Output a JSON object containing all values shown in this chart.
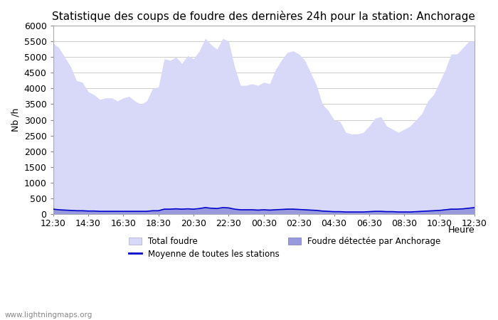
{
  "title": "Statistique des coups de foudre des dernières 24h pour la station: Anchorage",
  "xlabel": "Heure",
  "ylabel": "Nb /h",
  "watermark": "www.lightningmaps.org",
  "ylim": [
    0,
    6000
  ],
  "yticks": [
    0,
    500,
    1000,
    1500,
    2000,
    2500,
    3000,
    3500,
    4000,
    4500,
    5000,
    5500,
    6000
  ],
  "x_labels": [
    "12:30",
    "14:30",
    "16:30",
    "18:30",
    "20:30",
    "22:30",
    "00:30",
    "02:30",
    "04:30",
    "06:30",
    "08:30",
    "10:30",
    "12:30"
  ],
  "total_foudre_color": "#d8d8f8",
  "anchorage_color": "#9999dd",
  "moyenne_color": "#0000cc",
  "background_color": "#ffffff",
  "plot_bg_color": "#ffffff",
  "grid_color": "#cccccc",
  "title_fontsize": 11,
  "axis_fontsize": 9,
  "tick_fontsize": 9,
  "total_foudre": [
    5450,
    5300,
    5000,
    4700,
    4250,
    4200,
    3900,
    3800,
    3650,
    3700,
    3700,
    3600,
    3700,
    3750,
    3600,
    3500,
    3600,
    4000,
    4050,
    4950,
    4900,
    5000,
    4800,
    5050,
    4950,
    5200,
    5600,
    5400,
    5250,
    5600,
    5500,
    4700,
    4100,
    4100,
    4150,
    4100,
    4200,
    4150,
    4600,
    4900,
    5150,
    5200,
    5100,
    4900,
    4500,
    4100,
    3500,
    3300,
    3000,
    2950,
    2600,
    2550,
    2550,
    2600,
    2800,
    3050,
    3100,
    2800,
    2700,
    2600,
    2700,
    2800,
    3000,
    3200,
    3600,
    3800,
    4200,
    4600,
    5100,
    5100,
    5300,
    5500,
    5520
  ],
  "anchorage": [
    150,
    130,
    120,
    110,
    100,
    100,
    90,
    90,
    80,
    80,
    80,
    80,
    80,
    80,
    80,
    80,
    80,
    100,
    100,
    150,
    150,
    160,
    150,
    160,
    150,
    170,
    200,
    180,
    170,
    200,
    190,
    150,
    130,
    130,
    130,
    120,
    130,
    120,
    130,
    140,
    150,
    150,
    140,
    130,
    120,
    110,
    90,
    80,
    70,
    70,
    60,
    60,
    60,
    60,
    70,
    80,
    80,
    70,
    70,
    60,
    60,
    60,
    70,
    80,
    90,
    100,
    110,
    130,
    150,
    150,
    160,
    180,
    200
  ],
  "moyenne": [
    150,
    130,
    120,
    110,
    100,
    100,
    90,
    90,
    80,
    80,
    80,
    80,
    80,
    80,
    80,
    80,
    80,
    100,
    100,
    150,
    150,
    160,
    150,
    160,
    150,
    170,
    200,
    180,
    170,
    200,
    190,
    150,
    130,
    130,
    130,
    120,
    130,
    120,
    130,
    140,
    150,
    150,
    140,
    130,
    120,
    110,
    90,
    80,
    70,
    70,
    60,
    60,
    60,
    60,
    70,
    80,
    80,
    70,
    70,
    60,
    60,
    60,
    70,
    80,
    90,
    100,
    110,
    130,
    150,
    150,
    160,
    180,
    200
  ],
  "legend_total_label": "Total foudre",
  "legend_moyenne_label": "Moyenne de toutes les stations",
  "legend_anchorage_label": "Foudre détectée par Anchorage"
}
